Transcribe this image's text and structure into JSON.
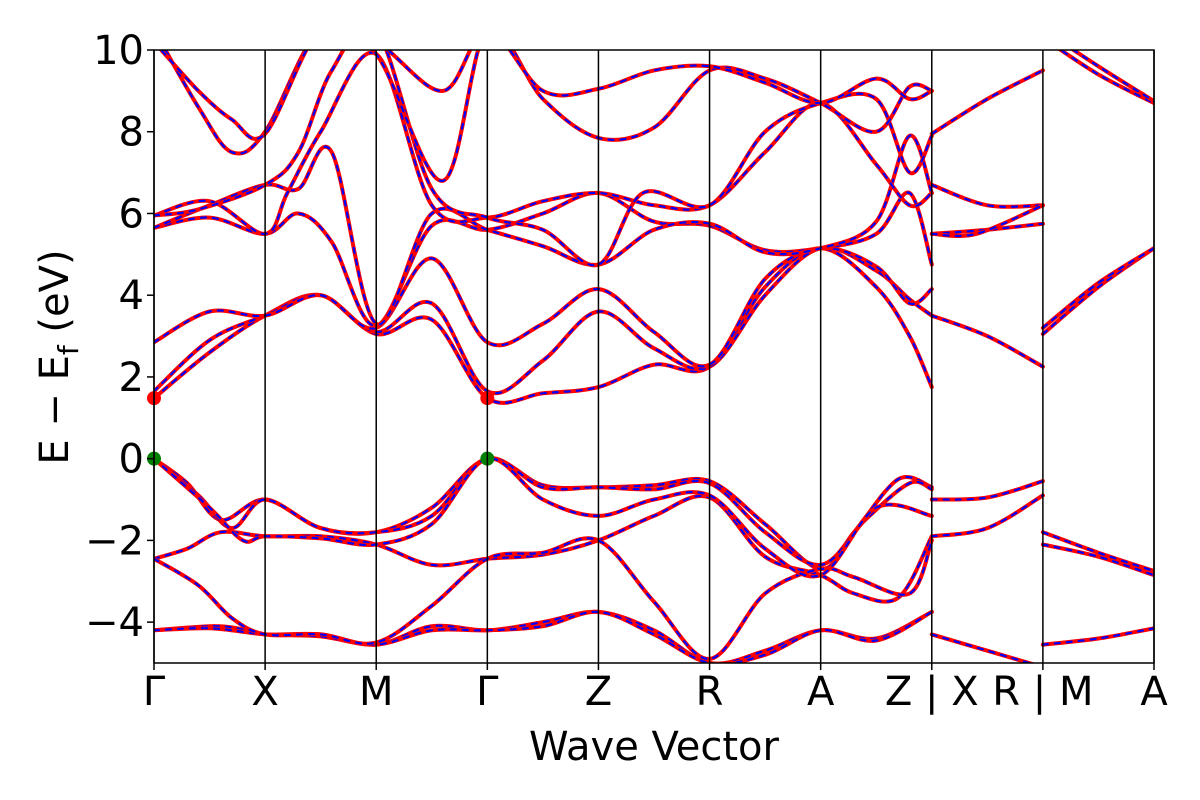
{
  "chart_data": {
    "type": "line",
    "title": "",
    "xlabel": "Wave Vector",
    "ylabel_main": "E − E",
    "ylabel_sub": "f",
    "ylabel_unit": " (eV)",
    "ylim": [
      -5,
      10
    ],
    "yticks": [
      -4,
      -2,
      0,
      2,
      4,
      6,
      8,
      10
    ],
    "ytick_labels": [
      "−4",
      "−2",
      "0",
      "2",
      "4",
      "6",
      "8",
      "10"
    ],
    "grid": false,
    "kpath": {
      "segments": [
        [
          0,
          6
        ],
        [
          6,
          7
        ],
        [
          7,
          9
        ]
      ],
      "x_range": [
        0,
        9
      ]
    },
    "xticks": [
      {
        "x": 0,
        "label": "Γ"
      },
      {
        "x": 1,
        "label": "X"
      },
      {
        "x": 2,
        "label": "M"
      },
      {
        "x": 3,
        "label": "Γ"
      },
      {
        "x": 4,
        "label": "Z"
      },
      {
        "x": 5,
        "label": "R"
      },
      {
        "x": 6,
        "label": "A"
      },
      {
        "x": 7,
        "label": "Z | X"
      },
      {
        "x": 8,
        "label": "R | M"
      },
      {
        "x": 9,
        "label": "A"
      }
    ],
    "series_style": [
      {
        "color": "#ff0000",
        "dash": "none",
        "width": 4
      },
      {
        "color": "#0000ff",
        "dash": "5 7",
        "width": 2.2
      }
    ],
    "markers": [
      {
        "x": 0,
        "y": 1.48,
        "color": "#ff0000"
      },
      {
        "x": 3,
        "y": 1.48,
        "color": "#ff0000"
      },
      {
        "x": 0,
        "y": 0,
        "color": "#008000"
      },
      {
        "x": 3,
        "y": 0,
        "color": "#008000"
      }
    ],
    "bands": [
      [
        [
          0,
          -4.2
        ],
        [
          0.5,
          -4.1
        ],
        [
          0.75,
          -4.15
        ],
        [
          1,
          -4.3
        ],
        [
          1.5,
          -4.3
        ],
        [
          2,
          -4.55
        ],
        [
          2.5,
          -4.1
        ],
        [
          3,
          -4.2
        ],
        [
          3.5,
          -4.0
        ],
        [
          4,
          -3.75
        ],
        [
          4.5,
          -4.2
        ],
        [
          5,
          -5.0
        ],
        [
          5.5,
          -4.7
        ],
        [
          6,
          -4.2
        ],
        [
          6.5,
          -4.4
        ],
        [
          7,
          -3.75
        ]
      ],
      [
        [
          0,
          -4.2
        ],
        [
          0.5,
          -4.15
        ],
        [
          1,
          -4.3
        ],
        [
          1.5,
          -4.35
        ],
        [
          2,
          -4.55
        ],
        [
          2.5,
          -4.2
        ],
        [
          3,
          -4.2
        ],
        [
          3.5,
          -4.1
        ],
        [
          4,
          -3.75
        ],
        [
          4.5,
          -4.3
        ],
        [
          5,
          -5.0
        ],
        [
          5.5,
          -4.8
        ],
        [
          6,
          -4.2
        ],
        [
          6.5,
          -4.45
        ],
        [
          7,
          -3.75
        ]
      ],
      [
        [
          0,
          -2.45
        ],
        [
          0.3,
          -2.2
        ],
        [
          0.6,
          -1.8
        ],
        [
          1,
          -1.9
        ],
        [
          1.5,
          -1.9
        ],
        [
          2,
          -2.1
        ],
        [
          2.5,
          -2.6
        ],
        [
          3,
          -2.45
        ],
        [
          3.5,
          -2.35
        ],
        [
          4,
          -2.0
        ],
        [
          4.5,
          -1.4
        ],
        [
          5,
          -0.95
        ],
        [
          5.5,
          -2.4
        ],
        [
          6,
          -2.85
        ],
        [
          6.3,
          -3.3
        ],
        [
          6.7,
          -3.4
        ],
        [
          7,
          -1.9
        ]
      ],
      [
        [
          0,
          -2.45
        ],
        [
          0.4,
          -3.1
        ],
        [
          0.7,
          -3.9
        ],
        [
          1,
          -4.3
        ],
        [
          1.5,
          -4.3
        ],
        [
          2,
          -4.5
        ],
        [
          2.5,
          -3.6
        ],
        [
          3,
          -2.45
        ],
        [
          3.5,
          -2.3
        ],
        [
          4,
          -2.0
        ],
        [
          4.5,
          -3.5
        ],
        [
          5,
          -4.9
        ],
        [
          5.5,
          -3.3
        ],
        [
          6,
          -2.7
        ],
        [
          6.3,
          -2.9
        ],
        [
          6.8,
          -3.3
        ],
        [
          7,
          -2.0
        ]
      ],
      [
        [
          0,
          0
        ],
        [
          0.3,
          -0.6
        ],
        [
          0.6,
          -1.5
        ],
        [
          1,
          -1.0
        ],
        [
          1.5,
          -1.7
        ],
        [
          2,
          -1.8
        ],
        [
          2.5,
          -1.2
        ],
        [
          3,
          0
        ],
        [
          3.5,
          -0.65
        ],
        [
          4,
          -0.7
        ],
        [
          4.5,
          -0.65
        ],
        [
          5,
          -0.55
        ],
        [
          5.5,
          -1.6
        ],
        [
          6,
          -2.7
        ],
        [
          6.3,
          -1.8
        ],
        [
          6.7,
          -0.5
        ],
        [
          7,
          -0.7
        ]
      ],
      [
        [
          0,
          0
        ],
        [
          0.4,
          -0.9
        ],
        [
          0.7,
          -1.7
        ],
        [
          1,
          -1.0
        ],
        [
          1.5,
          -1.7
        ],
        [
          2,
          -1.8
        ],
        [
          2.5,
          -1.4
        ],
        [
          3,
          0
        ],
        [
          3.5,
          -0.7
        ],
        [
          4,
          -0.7
        ],
        [
          4.5,
          -0.75
        ],
        [
          5,
          -0.6
        ],
        [
          5.5,
          -1.8
        ],
        [
          6,
          -2.6
        ],
        [
          6.4,
          -1.5
        ],
        [
          6.8,
          -0.6
        ],
        [
          7,
          -0.75
        ]
      ],
      [
        [
          0,
          0
        ],
        [
          0.5,
          -1.2
        ],
        [
          0.8,
          -2.0
        ],
        [
          1,
          -1.9
        ],
        [
          1.5,
          -1.95
        ],
        [
          2,
          -2.1
        ],
        [
          2.5,
          -1.6
        ],
        [
          3,
          0
        ],
        [
          3.5,
          -1.0
        ],
        [
          4,
          -1.4
        ],
        [
          4.5,
          -1.0
        ],
        [
          5,
          -0.9
        ],
        [
          5.5,
          -2.2
        ],
        [
          6,
          -2.85
        ],
        [
          6.5,
          -1.2
        ],
        [
          7,
          -1.4
        ]
      ],
      [
        [
          0,
          1.48
        ],
        [
          0.5,
          2.6
        ],
        [
          1,
          3.5
        ],
        [
          1.5,
          4.0
        ],
        [
          2,
          3.05
        ],
        [
          2.5,
          3.4
        ],
        [
          3,
          1.48
        ],
        [
          3.5,
          1.6
        ],
        [
          4,
          1.75
        ],
        [
          4.5,
          2.3
        ],
        [
          5,
          2.25
        ],
        [
          5.5,
          4.2
        ],
        [
          6,
          5.15
        ],
        [
          6.5,
          4.2
        ],
        [
          6.8,
          3.0
        ],
        [
          7,
          1.75
        ]
      ],
      [
        [
          0,
          1.65
        ],
        [
          0.5,
          2.9
        ],
        [
          1,
          3.5
        ],
        [
          1.5,
          4.0
        ],
        [
          2,
          3.1
        ],
        [
          2.5,
          3.8
        ],
        [
          3,
          1.65
        ],
        [
          3.5,
          2.4
        ],
        [
          4,
          3.6
        ],
        [
          4.5,
          2.7
        ],
        [
          5,
          2.25
        ],
        [
          5.5,
          4.0
        ],
        [
          6,
          5.15
        ],
        [
          6.5,
          4.6
        ],
        [
          6.8,
          3.9
        ],
        [
          7,
          3.5
        ]
      ],
      [
        [
          0,
          2.85
        ],
        [
          0.5,
          3.6
        ],
        [
          1,
          3.5
        ],
        [
          1.5,
          4.0
        ],
        [
          2,
          3.2
        ],
        [
          2.5,
          4.9
        ],
        [
          3,
          2.85
        ],
        [
          3.5,
          3.3
        ],
        [
          4,
          4.15
        ],
        [
          4.5,
          3.1
        ],
        [
          5,
          2.3
        ],
        [
          5.5,
          4.4
        ],
        [
          6,
          5.15
        ],
        [
          6.5,
          4.7
        ],
        [
          6.8,
          3.8
        ],
        [
          7,
          4.15
        ]
      ],
      [
        [
          0,
          5.65
        ],
        [
          0.5,
          5.9
        ],
        [
          1,
          5.5
        ],
        [
          1.3,
          6.0
        ],
        [
          1.6,
          5.3
        ],
        [
          2,
          3.25
        ],
        [
          2.5,
          5.7
        ],
        [
          3,
          5.6
        ],
        [
          3.5,
          6.0
        ],
        [
          4,
          6.5
        ],
        [
          4.5,
          5.8
        ],
        [
          5,
          5.7
        ],
        [
          5.5,
          5.1
        ],
        [
          6,
          5.15
        ],
        [
          6.5,
          5.5
        ],
        [
          6.8,
          6.5
        ],
        [
          7,
          4.75
        ]
      ],
      [
        [
          0,
          5.65
        ],
        [
          0.5,
          6.2
        ],
        [
          1,
          6.7
        ],
        [
          1.3,
          6.6
        ],
        [
          1.6,
          7.5
        ],
        [
          2,
          3.3
        ],
        [
          2.5,
          6.0
        ],
        [
          3,
          5.6
        ],
        [
          3.5,
          5.2
        ],
        [
          4,
          4.75
        ],
        [
          4.5,
          5.6
        ],
        [
          5,
          5.75
        ],
        [
          5.5,
          5.05
        ],
        [
          6,
          5.15
        ],
        [
          6.5,
          5.8
        ],
        [
          6.8,
          7.9
        ],
        [
          7,
          6.5
        ]
      ],
      [
        [
          0,
          5.95
        ],
        [
          0.5,
          6.3
        ],
        [
          1,
          5.5
        ],
        [
          1.2,
          6.5
        ],
        [
          1.5,
          8.0
        ],
        [
          2,
          9.9
        ],
        [
          2.5,
          6.2
        ],
        [
          3,
          5.9
        ],
        [
          3.5,
          6.3
        ],
        [
          4,
          6.5
        ],
        [
          4.5,
          6.2
        ],
        [
          5,
          6.2
        ],
        [
          5.5,
          7.5
        ],
        [
          6,
          8.7
        ],
        [
          6.5,
          7.2
        ],
        [
          6.8,
          6.2
        ],
        [
          7,
          6.5
        ]
      ],
      [
        [
          0,
          5.95
        ],
        [
          0.4,
          6.1
        ],
        [
          1,
          6.7
        ],
        [
          1.3,
          7.5
        ],
        [
          1.6,
          9.5
        ],
        [
          2,
          10.5
        ],
        [
          2.5,
          6.6
        ],
        [
          3,
          5.9
        ],
        [
          3.5,
          5.6
        ],
        [
          4,
          4.75
        ],
        [
          4.4,
          6.5
        ],
        [
          5,
          6.2
        ],
        [
          5.5,
          8.0
        ],
        [
          6,
          8.7
        ],
        [
          6.5,
          8.8
        ],
        [
          6.8,
          7.0
        ],
        [
          7,
          7.9
        ]
      ],
      [
        [
          0,
          10.5
        ],
        [
          0.4,
          8.6
        ],
        [
          0.7,
          7.5
        ],
        [
          1,
          8.0
        ],
        [
          1.5,
          10.5
        ],
        [
          2,
          9.9
        ],
        [
          2.6,
          6.8
        ],
        [
          3,
          10.5
        ],
        [
          3.5,
          8.8
        ],
        [
          4,
          7.85
        ],
        [
          4.5,
          8.1
        ],
        [
          5,
          9.5
        ],
        [
          5.5,
          9.3
        ],
        [
          6,
          8.7
        ],
        [
          6.5,
          8.0
        ],
        [
          6.8,
          9.1
        ],
        [
          7,
          9.0
        ]
      ],
      [
        [
          0,
          10.2
        ],
        [
          0.4,
          9.0
        ],
        [
          0.7,
          8.3
        ],
        [
          1,
          7.95
        ],
        [
          1.5,
          10.5
        ],
        [
          2,
          10.2
        ],
        [
          2.6,
          9.0
        ],
        [
          3,
          10.5
        ],
        [
          3.5,
          9.0
        ],
        [
          4,
          9.05
        ],
        [
          4.5,
          9.5
        ],
        [
          5,
          9.6
        ],
        [
          5.5,
          9.2
        ],
        [
          6,
          8.7
        ],
        [
          6.5,
          9.3
        ],
        [
          6.8,
          8.8
        ],
        [
          7,
          9.0
        ]
      ],
      [
        [
          7,
          -1.9
        ],
        [
          7.5,
          -1.7
        ],
        [
          8,
          -0.9
        ]
      ],
      [
        [
          7,
          -1.0
        ],
        [
          7.5,
          -0.95
        ],
        [
          8,
          -0.55
        ]
      ],
      [
        [
          7,
          -4.3
        ],
        [
          7.5,
          -4.7
        ],
        [
          8,
          -5.1
        ]
      ],
      [
        [
          7,
          3.5
        ],
        [
          7.5,
          3.0
        ],
        [
          8,
          2.25
        ]
      ],
      [
        [
          7,
          5.5
        ],
        [
          7.5,
          5.6
        ],
        [
          8,
          5.75
        ]
      ],
      [
        [
          7,
          6.7
        ],
        [
          7.5,
          6.2
        ],
        [
          8,
          6.2
        ]
      ],
      [
        [
          7,
          5.5
        ],
        [
          7.4,
          5.5
        ],
        [
          8,
          6.2
        ]
      ],
      [
        [
          7,
          7.95
        ],
        [
          7.5,
          8.8
        ],
        [
          8,
          9.5
        ]
      ],
      [
        [
          8,
          -1.8
        ],
        [
          8.5,
          -2.3
        ],
        [
          9,
          -2.75
        ]
      ],
      [
        [
          8,
          -2.1
        ],
        [
          8.5,
          -2.4
        ],
        [
          9,
          -2.85
        ]
      ],
      [
        [
          8,
          -4.55
        ],
        [
          8.5,
          -4.4
        ],
        [
          9,
          -4.15
        ]
      ],
      [
        [
          8,
          3.05
        ],
        [
          8.5,
          4.2
        ],
        [
          9,
          5.15
        ]
      ],
      [
        [
          8,
          3.2
        ],
        [
          8.5,
          4.3
        ],
        [
          9,
          5.15
        ]
      ],
      [
        [
          8,
          10.3
        ],
        [
          8.5,
          9.4
        ],
        [
          9,
          8.7
        ]
      ],
      [
        [
          8,
          10.5
        ],
        [
          8.5,
          9.6
        ],
        [
          9,
          8.75
        ]
      ]
    ]
  }
}
